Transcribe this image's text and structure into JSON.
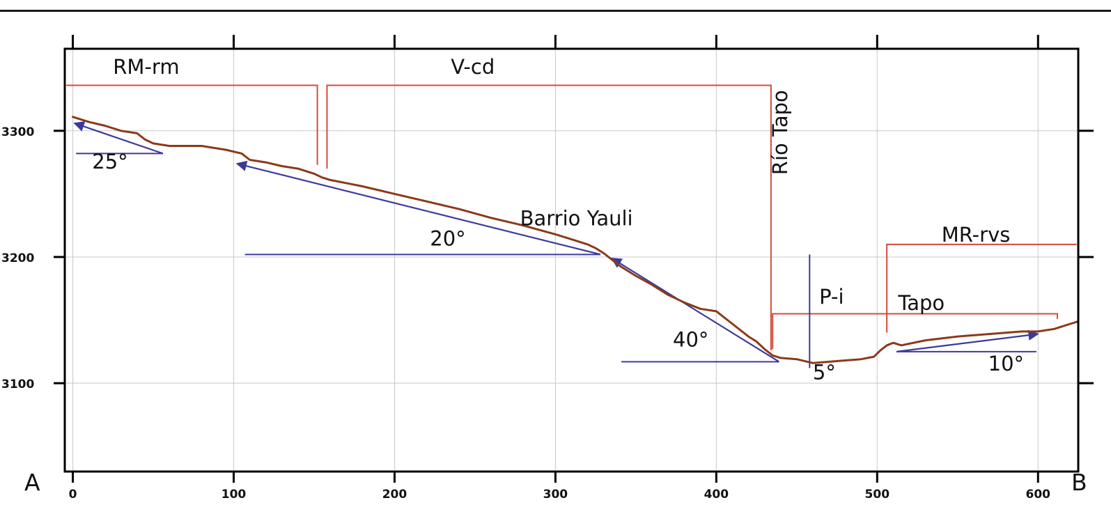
{
  "chart_data": {
    "type": "line",
    "title": "",
    "xlabel": "",
    "ylabel": "",
    "xlim": [
      -5,
      625
    ],
    "ylim": [
      3030,
      3365
    ],
    "x_ticks": [
      0,
      100,
      200,
      300,
      400,
      500,
      600
    ],
    "y_ticks": [
      3100,
      3200,
      3300
    ],
    "x_tick_labels": [
      "0",
      "100",
      "200",
      "300",
      "400",
      "500",
      "600"
    ],
    "y_tick_labels": [
      "3100",
      "3200",
      "3300"
    ],
    "grid": true,
    "end_labels": {
      "start": "A",
      "end": "B"
    },
    "series": [
      {
        "color": "#8b3a1a",
        "x": [
          0,
          10,
          20,
          30,
          40,
          45,
          50,
          60,
          80,
          95,
          105,
          110,
          120,
          130,
          140,
          150,
          155,
          160,
          180,
          200,
          220,
          240,
          260,
          280,
          300,
          310,
          320,
          325,
          330,
          335,
          340,
          350,
          360,
          370,
          380,
          390,
          400,
          410,
          420,
          425,
          430,
          435,
          440,
          450,
          460,
          470,
          480,
          490,
          498,
          502,
          506,
          510,
          515,
          530,
          550,
          570,
          590,
          600,
          610,
          620,
          625
        ],
        "y": [
          3311,
          3307,
          3304,
          3300,
          3298,
          3293,
          3290,
          3288,
          3288,
          3285,
          3282,
          3277,
          3275,
          3272,
          3270,
          3266,
          3263,
          3261,
          3256,
          3250,
          3244,
          3238,
          3231,
          3225,
          3218,
          3214,
          3210,
          3207,
          3203,
          3198,
          3193,
          3185,
          3178,
          3170,
          3164,
          3159,
          3157,
          3147,
          3137,
          3133,
          3127,
          3122,
          3120,
          3119,
          3116,
          3117,
          3118,
          3119,
          3121,
          3126,
          3130,
          3132,
          3130,
          3134,
          3137,
          3139,
          3141,
          3141,
          3143,
          3147,
          3149
        ]
      }
    ],
    "unit_boundaries": [
      {
        "label": "RM-rm",
        "label_x": 25,
        "label_y": 3345,
        "line_y": 3336,
        "x_from": -4,
        "x_to": 152,
        "drop_to": 3273
      },
      {
        "label": "V-cd",
        "label_x": 235,
        "label_y": 3345,
        "line_y": 3336,
        "x_from": 158,
        "x_to": 434,
        "drop_left_to": 3270,
        "drop_right_to": 3126
      },
      {
        "label": "Tapo",
        "label_x": 513,
        "label_y": 3158,
        "line_y": 3155,
        "x_from": 435,
        "x_to": 612,
        "drop_left_to": 3127,
        "drop_right_to": 3151
      },
      {
        "label": "MR-rvs",
        "label_x": 540,
        "label_y": 3212,
        "line_y": 3210,
        "x_from": 506,
        "x_to": 624,
        "drop_left_to": 3140
      }
    ],
    "annotations": [
      {
        "text": "Barrio Yauli",
        "x": 278,
        "y": 3225
      },
      {
        "text": "Río Tapo",
        "x": 444,
        "y": 3265,
        "rotate": -90
      },
      {
        "text": "P-i",
        "x": 464,
        "y": 3163
      },
      {
        "text": "25°",
        "x": 12,
        "y": 3270
      },
      {
        "text": "20°",
        "x": 222,
        "y": 3209
      },
      {
        "text": "40°",
        "x": 373,
        "y": 3129
      },
      {
        "text": "5°",
        "x": 460,
        "y": 3103
      },
      {
        "text": "10°",
        "x": 569,
        "y": 3110
      }
    ],
    "slope_markers": [
      {
        "angle": "25°",
        "base": [
          [
            2,
            3282
          ],
          [
            56,
            3282
          ]
        ],
        "arrow_from": [
          56,
          3282
        ],
        "arrow_to": [
          1,
          3306
        ]
      },
      {
        "angle": "20°",
        "base": [
          [
            107,
            3202
          ],
          [
            328,
            3202
          ]
        ],
        "arrow_from": [
          328,
          3202
        ],
        "arrow_to": [
          102,
          3274
        ]
      },
      {
        "angle": "40°",
        "base": [
          [
            341,
            3117
          ],
          [
            439,
            3117
          ]
        ],
        "arrow_from": [
          439,
          3117
        ],
        "arrow_to": [
          335,
          3199
        ]
      },
      {
        "angle": "10°",
        "base": [
          [
            512,
            3125
          ],
          [
            599,
            3125
          ]
        ],
        "arrow_from": [
          512,
          3125
        ],
        "arrow_to": [
          600,
          3139
        ]
      }
    ],
    "markers": [
      {
        "type": "vertical",
        "x": 458,
        "y_from": 3112,
        "y_to": 3202
      }
    ],
    "colors": {
      "profile": "#8b3a1a",
      "unit_lines": "#d64a3a",
      "slope_lines": "#3a3a9c",
      "axis": "#000000",
      "grid": "#c8c8c8"
    }
  }
}
